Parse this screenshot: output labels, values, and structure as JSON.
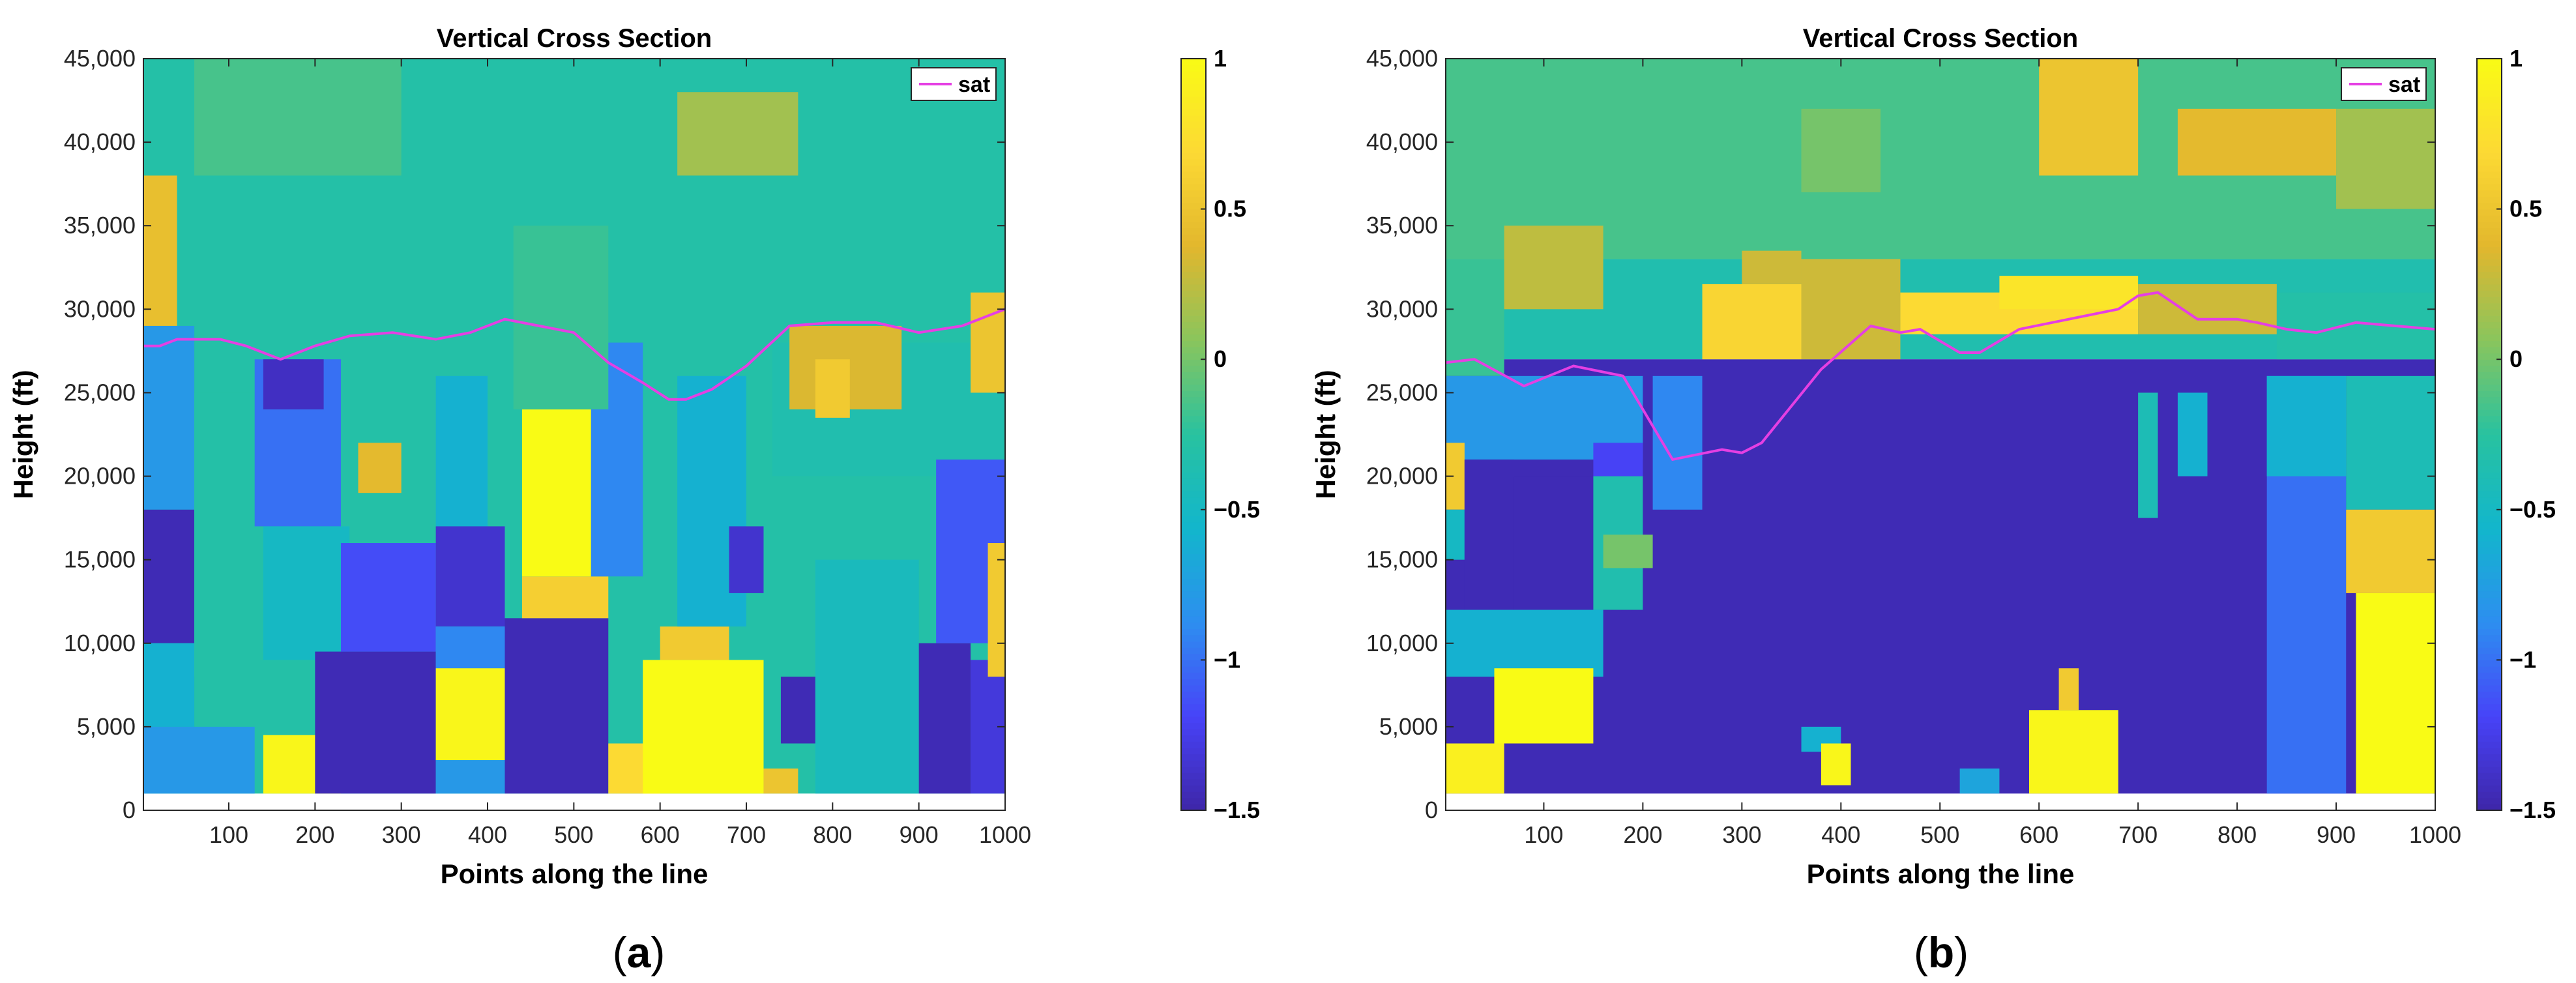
{
  "colors": {
    "colormap": [
      "#3e26a8",
      "#4743f8",
      "#2d8ef0",
      "#12b6cc",
      "#28c2a0",
      "#89c55d",
      "#e2b72d",
      "#fcd934",
      "#f9fb15"
    ],
    "sat_line": "#e53fe3",
    "axis": "#262626",
    "text": "#000000"
  },
  "panels": [
    {
      "id": "a",
      "label_open": "(",
      "label_letter": "a",
      "label_close": ")"
    },
    {
      "id": "b",
      "label_open": "(",
      "label_letter": "b",
      "label_close": ")"
    }
  ],
  "chart_data": [
    {
      "type": "heatmap",
      "title": "Vertical Cross Section",
      "xlabel": "Points along the line",
      "ylabel": "Height (ft)",
      "xlim": [
        1,
        1000
      ],
      "ylim": [
        0,
        45000
      ],
      "x_ticks": [
        100,
        200,
        300,
        400,
        500,
        600,
        700,
        800,
        900,
        1000
      ],
      "x_tick_labels": [
        "100",
        "200",
        "300",
        "400",
        "500",
        "600",
        "700",
        "800",
        "900",
        "1000"
      ],
      "y_ticks": [
        0,
        5000,
        10000,
        15000,
        20000,
        25000,
        30000,
        35000,
        40000,
        45000
      ],
      "y_tick_labels": [
        "0",
        "5,000",
        "10,000",
        "15,000",
        "20,000",
        "25,000",
        "30,000",
        "35,000",
        "40,000",
        "45,000"
      ],
      "colorbar": {
        "range": [
          -1.5,
          1
        ],
        "ticks": [
          1,
          0.5,
          0,
          -0.5,
          -1,
          -1.5
        ],
        "tick_labels": [
          "1",
          "0.5",
          "0",
          "−0.5",
          "−1",
          "−1.5"
        ]
      },
      "legend": {
        "entries": [
          "sat"
        ],
        "location": "top-right"
      },
      "regions": [
        {
          "x": [
            1,
            1000
          ],
          "y": [
            1000,
            45000
          ],
          "v": -0.3
        },
        {
          "x": [
            1,
            40
          ],
          "y": [
            29000,
            38000
          ],
          "v": 0.45
        },
        {
          "x": [
            1,
            60
          ],
          "y": [
            18000,
            29000
          ],
          "v": -0.8
        },
        {
          "x": [
            1,
            60
          ],
          "y": [
            10000,
            18000
          ],
          "v": -1.45
        },
        {
          "x": [
            1,
            60
          ],
          "y": [
            5000,
            10000
          ],
          "v": -0.6
        },
        {
          "x": [
            1,
            130
          ],
          "y": [
            1000,
            5000
          ],
          "v": -0.8
        },
        {
          "x": [
            60,
            130
          ],
          "y": [
            8000,
            25000
          ],
          "v": -0.3
        },
        {
          "x": [
            130,
            230
          ],
          "y": [
            17000,
            27000
          ],
          "v": -1.0
        },
        {
          "x": [
            140,
            210
          ],
          "y": [
            24000,
            27000
          ],
          "v": -1.4
        },
        {
          "x": [
            140,
            240
          ],
          "y": [
            9000,
            17000
          ],
          "v": -0.5
        },
        {
          "x": [
            140,
            230
          ],
          "y": [
            1000,
            4500
          ],
          "v": 0.95
        },
        {
          "x": [
            200,
            340
          ],
          "y": [
            1000,
            9500
          ],
          "v": -1.45
        },
        {
          "x": [
            230,
            340
          ],
          "y": [
            9500,
            16000
          ],
          "v": -1.15
        },
        {
          "x": [
            250,
            300
          ],
          "y": [
            19000,
            22000
          ],
          "v": 0.4
        },
        {
          "x": [
            340,
            400
          ],
          "y": [
            17000,
            26000
          ],
          "v": -0.6
        },
        {
          "x": [
            340,
            420
          ],
          "y": [
            11000,
            17000
          ],
          "v": -1.35
        },
        {
          "x": [
            340,
            420
          ],
          "y": [
            8000,
            11000
          ],
          "v": -0.9
        },
        {
          "x": [
            340,
            420
          ],
          "y": [
            3000,
            8500
          ],
          "v": 0.95
        },
        {
          "x": [
            340,
            420
          ],
          "y": [
            1000,
            3000
          ],
          "v": -0.8
        },
        {
          "x": [
            420,
            540
          ],
          "y": [
            1000,
            11500
          ],
          "v": -1.45
        },
        {
          "x": [
            440,
            540
          ],
          "y": [
            11500,
            14000
          ],
          "v": 0.6
        },
        {
          "x": [
            440,
            520
          ],
          "y": [
            14000,
            24000
          ],
          "v": 1.0
        },
        {
          "x": [
            520,
            580
          ],
          "y": [
            14000,
            28000
          ],
          "v": -0.9
        },
        {
          "x": [
            430,
            540
          ],
          "y": [
            24000,
            35000
          ],
          "v": -0.2
        },
        {
          "x": [
            540,
            600
          ],
          "y": [
            1000,
            4000
          ],
          "v": 0.7
        },
        {
          "x": [
            580,
            720
          ],
          "y": [
            1000,
            9000
          ],
          "v": 1.0
        },
        {
          "x": [
            600,
            680
          ],
          "y": [
            9000,
            11000
          ],
          "v": 0.55
        },
        {
          "x": [
            620,
            700
          ],
          "y": [
            11000,
            26000
          ],
          "v": -0.6
        },
        {
          "x": [
            680,
            720
          ],
          "y": [
            13000,
            17000
          ],
          "v": -1.35
        },
        {
          "x": [
            720,
            760
          ],
          "y": [
            1000,
            2500
          ],
          "v": 0.5
        },
        {
          "x": [
            730,
            1000
          ],
          "y": [
            20000,
            28000
          ],
          "v": -0.35
        },
        {
          "x": [
            750,
            880
          ],
          "y": [
            24000,
            29000
          ],
          "v": 0.35
        },
        {
          "x": [
            780,
            820
          ],
          "y": [
            23500,
            27000
          ],
          "v": 0.55
        },
        {
          "x": [
            740,
            780
          ],
          "y": [
            4000,
            8000
          ],
          "v": -1.45
        },
        {
          "x": [
            780,
            900
          ],
          "y": [
            1000,
            15000
          ],
          "v": -0.45
        },
        {
          "x": [
            900,
            960
          ],
          "y": [
            1000,
            10000
          ],
          "v": -1.45
        },
        {
          "x": [
            920,
            1000
          ],
          "y": [
            10000,
            21000
          ],
          "v": -1.1
        },
        {
          "x": [
            960,
            1000
          ],
          "y": [
            1000,
            9000
          ],
          "v": -1.3
        },
        {
          "x": [
            980,
            1000
          ],
          "y": [
            8000,
            16000
          ],
          "v": 0.55
        },
        {
          "x": [
            960,
            1000
          ],
          "y": [
            25000,
            31000
          ],
          "v": 0.5
        },
        {
          "x": [
            620,
            760
          ],
          "y": [
            38000,
            43000
          ],
          "v": 0.15
        },
        {
          "x": [
            60,
            300
          ],
          "y": [
            38000,
            45000
          ],
          "v": -0.15
        }
      ],
      "sat": {
        "x": [
          1,
          20,
          40,
          60,
          90,
          120,
          160,
          200,
          240,
          290,
          340,
          380,
          420,
          460,
          500,
          540,
          580,
          610,
          630,
          660,
          700,
          750,
          800,
          850,
          900,
          950,
          1000
        ],
        "y": [
          27800,
          27800,
          28200,
          28200,
          28200,
          27800,
          27000,
          27800,
          28400,
          28600,
          28200,
          28600,
          29400,
          29000,
          28600,
          26800,
          25600,
          24600,
          24600,
          25200,
          26600,
          29000,
          29200,
          29200,
          28600,
          29000,
          30000
        ]
      }
    },
    {
      "type": "heatmap",
      "title": "Vertical Cross Section",
      "xlabel": "Points along the line",
      "ylabel": "Height (ft)",
      "xlim": [
        1,
        1000
      ],
      "ylim": [
        0,
        45000
      ],
      "x_ticks": [
        100,
        200,
        300,
        400,
        500,
        600,
        700,
        800,
        900,
        1000
      ],
      "x_tick_labels": [
        "100",
        "200",
        "300",
        "400",
        "500",
        "600",
        "700",
        "800",
        "900",
        "1000"
      ],
      "y_ticks": [
        0,
        5000,
        10000,
        15000,
        20000,
        25000,
        30000,
        35000,
        40000,
        45000
      ],
      "y_tick_labels": [
        "0",
        "5,000",
        "10,000",
        "15,000",
        "20,000",
        "25,000",
        "30,000",
        "35,000",
        "40,000",
        "45,000"
      ],
      "colorbar": {
        "range": [
          -1.5,
          1
        ],
        "ticks": [
          1,
          0.5,
          0,
          -0.5,
          -1,
          -1.5
        ],
        "tick_labels": [
          "1",
          "0.5",
          "0",
          "−0.5",
          "−1",
          "−1.5"
        ]
      },
      "legend": {
        "entries": [
          "sat"
        ],
        "location": "top-right"
      },
      "regions": [
        {
          "x": [
            1,
            1000
          ],
          "y": [
            33000,
            45000
          ],
          "v": -0.15
        },
        {
          "x": [
            1,
            1000
          ],
          "y": [
            27000,
            33000
          ],
          "v": -0.35
        },
        {
          "x": [
            1,
            1000
          ],
          "y": [
            1000,
            27000
          ],
          "v": -1.45
        },
        {
          "x": [
            1,
            60
          ],
          "y": [
            26000,
            33000
          ],
          "v": -0.2
        },
        {
          "x": [
            60,
            160
          ],
          "y": [
            30000,
            35000
          ],
          "v": 0.25
        },
        {
          "x": [
            1,
            200
          ],
          "y": [
            21000,
            26000
          ],
          "v": -0.8
        },
        {
          "x": [
            1,
            20
          ],
          "y": [
            18000,
            22000
          ],
          "v": 0.55
        },
        {
          "x": [
            1,
            20
          ],
          "y": [
            15000,
            18000
          ],
          "v": -0.5
        },
        {
          "x": [
            20,
            70
          ],
          "y": [
            12000,
            21000
          ],
          "v": -1.45
        },
        {
          "x": [
            70,
            160
          ],
          "y": [
            12000,
            20000
          ],
          "v": -1.45
        },
        {
          "x": [
            1,
            160
          ],
          "y": [
            8000,
            12000
          ],
          "v": -0.6
        },
        {
          "x": [
            50,
            150
          ],
          "y": [
            4000,
            8500
          ],
          "v": 1.0
        },
        {
          "x": [
            1,
            60
          ],
          "y": [
            1000,
            4000
          ],
          "v": 0.9
        },
        {
          "x": [
            150,
            200
          ],
          "y": [
            20000,
            22000
          ],
          "v": -1.2
        },
        {
          "x": [
            150,
            200
          ],
          "y": [
            12000,
            20000
          ],
          "v": -0.35
        },
        {
          "x": [
            160,
            210
          ],
          "y": [
            14500,
            16500
          ],
          "v": 0.0
        },
        {
          "x": [
            210,
            260
          ],
          "y": [
            18000,
            26000
          ],
          "v": -0.9
        },
        {
          "x": [
            260,
            360
          ],
          "y": [
            27000,
            31500
          ],
          "v": 0.65
        },
        {
          "x": [
            300,
            360
          ],
          "y": [
            31500,
            33500
          ],
          "v": 0.3
        },
        {
          "x": [
            360,
            460
          ],
          "y": [
            27000,
            33000
          ],
          "v": 0.3
        },
        {
          "x": [
            460,
            700
          ],
          "y": [
            28500,
            31000
          ],
          "v": 0.7
        },
        {
          "x": [
            560,
            700
          ],
          "y": [
            30000,
            32000
          ],
          "v": 0.8
        },
        {
          "x": [
            700,
            840
          ],
          "y": [
            28500,
            31500
          ],
          "v": 0.3
        },
        {
          "x": [
            840,
            1000
          ],
          "y": [
            27000,
            31000
          ],
          "v": -0.3
        },
        {
          "x": [
            600,
            700
          ],
          "y": [
            38000,
            45000
          ],
          "v": 0.5
        },
        {
          "x": [
            740,
            900
          ],
          "y": [
            38000,
            42000
          ],
          "v": 0.4
        },
        {
          "x": [
            900,
            1000
          ],
          "y": [
            36000,
            42000
          ],
          "v": 0.15
        },
        {
          "x": [
            360,
            440
          ],
          "y": [
            37000,
            42000
          ],
          "v": 0.0
        },
        {
          "x": [
            360,
            400
          ],
          "y": [
            3500,
            5000
          ],
          "v": -0.6
        },
        {
          "x": [
            380,
            410
          ],
          "y": [
            1500,
            4000
          ],
          "v": 0.95
        },
        {
          "x": [
            520,
            560
          ],
          "y": [
            1000,
            2500
          ],
          "v": -0.7
        },
        {
          "x": [
            590,
            680
          ],
          "y": [
            1000,
            6000
          ],
          "v": 0.95
        },
        {
          "x": [
            620,
            640
          ],
          "y": [
            6000,
            8500
          ],
          "v": 0.55
        },
        {
          "x": [
            700,
            720
          ],
          "y": [
            17500,
            25000
          ],
          "v": -0.4
        },
        {
          "x": [
            740,
            770
          ],
          "y": [
            20000,
            25000
          ],
          "v": -0.6
        },
        {
          "x": [
            830,
            910
          ],
          "y": [
            1000,
            26000
          ],
          "v": -1.0
        },
        {
          "x": [
            830,
            910
          ],
          "y": [
            20000,
            26000
          ],
          "v": -0.6
        },
        {
          "x": [
            910,
            1000
          ],
          "y": [
            18000,
            26000
          ],
          "v": -0.4
        },
        {
          "x": [
            910,
            1000
          ],
          "y": [
            13000,
            18000
          ],
          "v": 0.55
        },
        {
          "x": [
            920,
            1000
          ],
          "y": [
            1000,
            13000
          ],
          "v": 1.0
        }
      ],
      "sat": {
        "x": [
          1,
          30,
          80,
          130,
          180,
          230,
          280,
          300,
          320,
          380,
          430,
          460,
          480,
          520,
          540,
          580,
          630,
          680,
          700,
          720,
          760,
          800,
          820,
          850,
          880,
          920,
          960,
          1000
        ],
        "y": [
          26800,
          27000,
          25400,
          26600,
          26000,
          21000,
          21600,
          21400,
          22000,
          26400,
          29000,
          28600,
          28800,
          27400,
          27400,
          28800,
          29400,
          30000,
          30800,
          31000,
          29400,
          29400,
          29200,
          28800,
          28600,
          29200,
          29000,
          28800
        ]
      }
    }
  ]
}
